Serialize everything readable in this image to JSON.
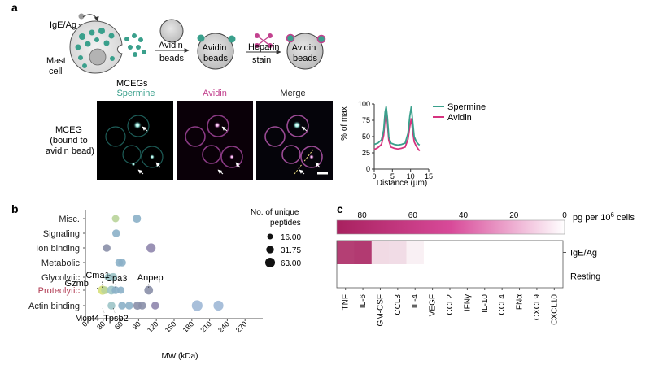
{
  "panels": {
    "a": {
      "letter": "a",
      "schematic": {
        "ige_label": "IgE/Ag",
        "mast_cell_label": [
          "Mast",
          "cell"
        ],
        "mceg_label": "MCEGs",
        "arrow1_label": [
          "Avidin",
          "beads"
        ],
        "arrow2_label": [
          "Heparin",
          "stain"
        ],
        "bead_label": [
          "Avidin",
          "beads"
        ],
        "colors": {
          "granule": "#3aa08c",
          "bead": "#d0d0d0",
          "heparin": "#c2418e"
        }
      },
      "micrographs": {
        "row_label": [
          "MCEG",
          "(bound to",
          "avidin bead)"
        ],
        "titles": [
          "Spermine",
          "Avidin",
          "Merge"
        ],
        "title_colors": [
          "#3aa08c",
          "#c2418e",
          "#222222"
        ]
      },
      "line_chart": {
        "type": "line",
        "xlabel": "Distance (µm)",
        "ylabel": "% of max",
        "xlim": [
          0,
          15
        ],
        "ylim": [
          0,
          100
        ],
        "xticks": [
          0,
          5,
          10,
          15
        ],
        "yticks": [
          0,
          25,
          50,
          75,
          100
        ],
        "legend_position": "right",
        "series": [
          {
            "name": "Spermine",
            "color": "#3aa08c",
            "x": [
              0,
              1,
              2,
              2.6,
              3,
              3.3,
              3.6,
              4,
              4.6,
              5.5,
              6.5,
              7.5,
              8.5,
              9.3,
              9.8,
              10.2,
              10.5,
              11,
              11.6,
              12.2,
              12.5
            ],
            "y": [
              38,
              40,
              45,
              60,
              88,
              96,
              80,
              50,
              40,
              38,
              37,
              38,
              40,
              55,
              82,
              96,
              78,
              50,
              42,
              38,
              37
            ]
          },
          {
            "name": "Avidin",
            "color": "#d6337f",
            "x": [
              0,
              1,
              2,
              2.6,
              3,
              3.3,
              3.6,
              4,
              4.6,
              5.5,
              6.5,
              7.5,
              8.5,
              9.3,
              9.8,
              10.2,
              10.5,
              11,
              11.6,
              12.2,
              12.5
            ],
            "y": [
              30,
              33,
              38,
              52,
              78,
              86,
              72,
              44,
              34,
              32,
              31,
              32,
              34,
              46,
              66,
              78,
              62,
              42,
              35,
              30,
              28
            ]
          }
        ]
      }
    },
    "b": {
      "letter": "b",
      "chart_data": {
        "type": "scatter",
        "xlabel": "MW (kDa)",
        "xlim": [
          0,
          300
        ],
        "xticks": [
          0,
          30,
          60,
          90,
          120,
          150,
          180,
          210,
          240,
          270
        ],
        "categories": [
          "Misc.",
          "Signaling",
          "Ion binding",
          "Metabolic",
          "Glycolytic",
          "Proteolytic",
          "Actin binding"
        ],
        "category_colors": [
          "#222222",
          "#222222",
          "#222222",
          "#222222",
          "#222222",
          "#b03a52",
          "#222222"
        ],
        "size_legend": {
          "title": [
            "No. of unique",
            "peptides"
          ],
          "values": [
            "16.00",
            "31.75",
            "63.00"
          ]
        },
        "points": [
          {
            "x": 51,
            "cat": "Misc.",
            "size": 14,
            "color": "#b9d49a"
          },
          {
            "x": 87,
            "cat": "Misc.",
            "size": 18,
            "color": "#8bb0c8"
          },
          {
            "x": 52,
            "cat": "Signaling",
            "size": 16,
            "color": "#8bb0c8"
          },
          {
            "x": 36,
            "cat": "Ion binding",
            "size": 16,
            "color": "#8a8fa8"
          },
          {
            "x": 111,
            "cat": "Ion binding",
            "size": 22,
            "color": "#8f86ad"
          },
          {
            "x": 57,
            "cat": "Metabolic",
            "size": 16,
            "color": "#8bb0c8"
          },
          {
            "x": 62,
            "cat": "Metabolic",
            "size": 16,
            "color": "#8bb0c8"
          },
          {
            "x": 39,
            "cat": "Glycolytic",
            "size": 16,
            "color": "#9cc4c8"
          },
          {
            "x": 47,
            "cat": "Glycolytic",
            "size": 18,
            "color": "#9cc4c8"
          },
          {
            "x": 29,
            "cat": "Proteolytic",
            "size": 22,
            "color": "#d6e07a"
          },
          {
            "x": 33,
            "cat": "Proteolytic",
            "size": 16,
            "color": "#b9d49a"
          },
          {
            "x": 44,
            "cat": "Proteolytic",
            "size": 20,
            "color": "#9cc4c8"
          },
          {
            "x": 51,
            "cat": "Proteolytic",
            "size": 16,
            "color": "#8bb0c8"
          },
          {
            "x": 60,
            "cat": "Proteolytic",
            "size": 14,
            "color": "#8bb0c8"
          },
          {
            "x": 107,
            "cat": "Proteolytic",
            "size": 20,
            "color": "#8a8fa8"
          },
          {
            "x": 44,
            "cat": "Actin binding",
            "size": 16,
            "color": "#9cc4c8"
          },
          {
            "x": 62,
            "cat": "Actin binding",
            "size": 16,
            "color": "#8bb0c8"
          },
          {
            "x": 74,
            "cat": "Actin binding",
            "size": 16,
            "color": "#8bb0c8"
          },
          {
            "x": 88,
            "cat": "Actin binding",
            "size": 18,
            "color": "#8a8fa8"
          },
          {
            "x": 96,
            "cat": "Actin binding",
            "size": 16,
            "color": "#8a8fa8"
          },
          {
            "x": 118,
            "cat": "Actin binding",
            "size": 16,
            "color": "#8f86ad"
          },
          {
            "x": 189,
            "cat": "Actin binding",
            "size": 30,
            "color": "#9fb8d6"
          },
          {
            "x": 225,
            "cat": "Actin binding",
            "size": 26,
            "color": "#9fb8d6"
          }
        ],
        "annotations": [
          {
            "text": "Cma1",
            "x": 28,
            "cat": "Proteolytic"
          },
          {
            "text": "Gzmb",
            "x": 20,
            "cat": "Proteolytic"
          },
          {
            "text": "Cpa3",
            "x": 51,
            "cat": "Proteolytic"
          },
          {
            "text": "Anpep",
            "x": 107,
            "cat": "Proteolytic"
          },
          {
            "text": "Mcpt4",
            "x": 29,
            "cat": "Actin binding"
          },
          {
            "text": "Tpsb2",
            "x": 47,
            "cat": "Actin binding"
          }
        ]
      }
    },
    "c": {
      "letter": "c",
      "chart_data": {
        "type": "heatmap",
        "scale": {
          "label": "pg per 10^6 cells",
          "label_main": "pg per 10",
          "label_sup": "6",
          "label_tail": " cells",
          "ticks": [
            80,
            60,
            40,
            20,
            0
          ],
          "max": 90,
          "min": 0,
          "color_high": "#a8215f",
          "color_low": "#ffffff"
        },
        "rows": [
          "IgE/Ag",
          "Resting"
        ],
        "columns": [
          "TNF",
          "IL-6",
          "GM-CSF",
          "CCL3",
          "IL-4",
          "VEGF",
          "CCL2",
          "IFNγ",
          "IL-10",
          "CCL4",
          "IFNα",
          "CXCL9",
          "CXCL10"
        ],
        "values": [
          [
            78,
            80,
            15,
            14,
            6,
            0,
            0,
            0,
            0,
            0,
            0,
            0,
            0
          ],
          [
            0,
            0,
            0,
            0,
            0,
            0,
            0,
            0,
            0,
            0,
            0,
            0,
            0
          ]
        ]
      }
    }
  }
}
